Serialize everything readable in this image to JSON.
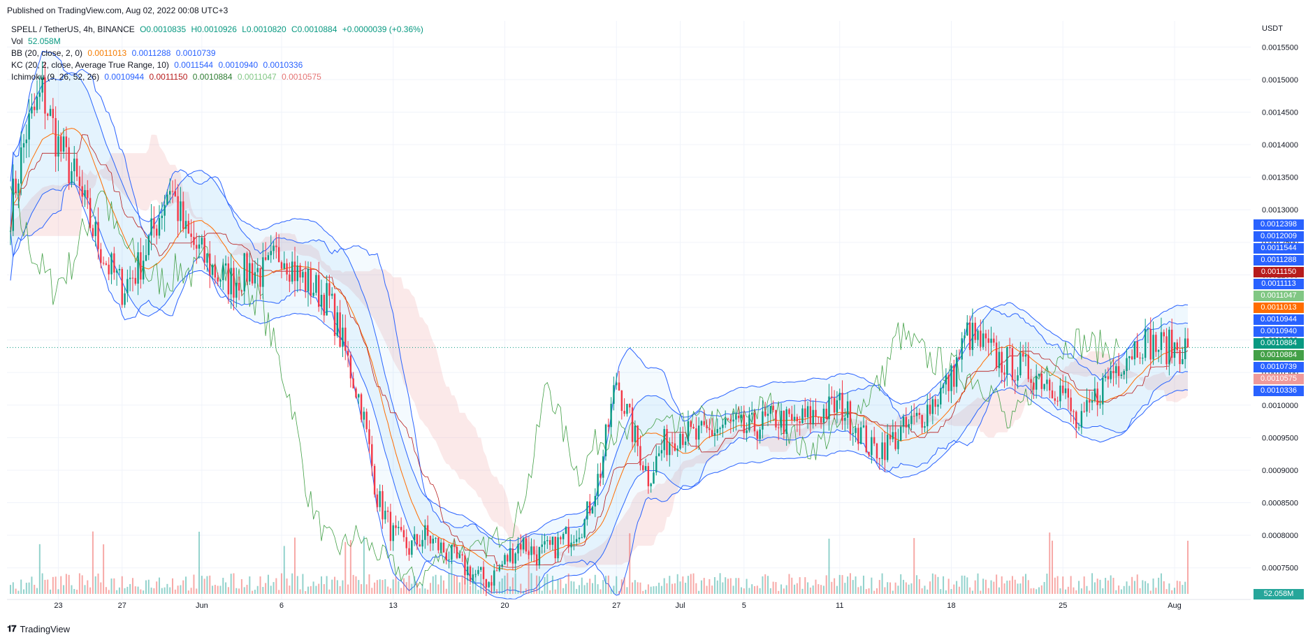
{
  "header": {
    "published": "Published on TradingView.com, Aug 02, 2022 00:08 UTC+3"
  },
  "legend": {
    "symbol": "SPELL / TetherUS, 4h, BINANCE",
    "ohlc": [
      "O0.0010835",
      "H0.0010926",
      "L0.0010820",
      "C0.0010884",
      "+0.0000039 (+0.36%)"
    ],
    "vol_label": "Vol",
    "vol_value": "52.058M",
    "bb_label": "BB (20, close, 2, 0)",
    "bb_values": [
      "0.0011013",
      "0.0011288",
      "0.0010739"
    ],
    "kc_label": "KC (20, 2, close, Average True Range, 10)",
    "kc_values": [
      "0.0011544",
      "0.0010940",
      "0.0010336"
    ],
    "ichi_label": "Ichimoku (9, 26, 52, 26)",
    "ichi_values": [
      "0.0010944",
      "0.0011150",
      "0.0010884",
      "0.0011047",
      "0.0010575"
    ]
  },
  "footer": {
    "brand": "TradingView"
  },
  "colors": {
    "up": "#089981",
    "down": "#f23645",
    "bb": "#ff6d00",
    "kc": "#2962ff",
    "ichi_lead_up": "#a5d6a7",
    "ichi_lead_down": "#ef9a9a",
    "grid": "#f0f3fa"
  },
  "price_labels": [
    {
      "text": "0.0012398",
      "value": 0.0012398,
      "color": "#2962ff"
    },
    {
      "text": "0.0012009",
      "value": 0.0012009,
      "color": "#2962ff"
    },
    {
      "text": "0.0011544",
      "value": 0.0011544,
      "color": "#2962ff"
    },
    {
      "text": "0.0011288",
      "value": 0.0011288,
      "color": "#2962ff"
    },
    {
      "text": "0.0011150",
      "value": 0.001115,
      "color": "#b71c1c"
    },
    {
      "text": "0.0011113",
      "value": 0.0011113,
      "color": "#2962ff"
    },
    {
      "text": "0.0011047",
      "value": 0.0011047,
      "color": "#81c784"
    },
    {
      "text": "0.0011013",
      "value": 0.0011013,
      "color": "#ff6d00"
    },
    {
      "text": "0.0010944",
      "value": 0.0010944,
      "color": "#2962ff"
    },
    {
      "text": "0.0010940",
      "value": 0.001094,
      "color": "#2962ff"
    },
    {
      "text": "0.0010884",
      "value": 0.0010884,
      "color": "#089981"
    },
    {
      "text": "0.0010884",
      "value": 0.0010884,
      "color": "#43a047"
    },
    {
      "text": "0.0010739",
      "value": 0.0010739,
      "color": "#2962ff"
    },
    {
      "text": "0.0010575",
      "value": 0.0010575,
      "color": "#ef9a9a"
    },
    {
      "text": "0.0010336",
      "value": 0.0010336,
      "color": "#2962ff"
    }
  ],
  "volume_label": {
    "text": "52.058M",
    "color": "#26a69a"
  },
  "chart_data": {
    "type": "candlestick",
    "title": "SPELL / TetherUS, 4h, BINANCE",
    "y_unit": "USDT",
    "ylim": [
      0.00071,
      0.00159
    ],
    "y_ticks": [
      "0.0015500",
      "0.0015000",
      "0.0014500",
      "0.0014000",
      "0.0013500",
      "0.0013000",
      "0.0012500",
      "0.0012000",
      "0.0011500",
      "0.0011000",
      "0.0010500",
      "0.0010000",
      "0.0009500",
      "0.0009000",
      "0.0008500",
      "0.0008000",
      "0.0007500"
    ],
    "x_ticks": [
      "23",
      "27",
      "Jun",
      "6",
      "13",
      "20",
      "27",
      "Jul",
      "5",
      "11",
      "18",
      "25",
      "Aug"
    ],
    "last_close": 0.0010884,
    "daily_path": [
      [
        "May 20",
        0.0013
      ],
      [
        "May 21",
        0.00142
      ],
      [
        "May 22",
        0.00148
      ],
      [
        "May 23",
        0.0014
      ],
      [
        "May 24",
        0.00135
      ],
      [
        "May 25",
        0.00128
      ],
      [
        "May 26",
        0.00122
      ],
      [
        "May 27",
        0.00118
      ],
      [
        "May 28",
        0.00121
      ],
      [
        "May 29",
        0.00127
      ],
      [
        "May 30",
        0.00134
      ],
      [
        "May 31",
        0.00126
      ],
      [
        "Jun 1",
        0.00123
      ],
      [
        "Jun 2",
        0.0012
      ],
      [
        "Jun 3",
        0.00119
      ],
      [
        "Jun 4",
        0.00121
      ],
      [
        "Jun 5",
        0.0012
      ],
      [
        "Jun 6",
        0.00124
      ],
      [
        "Jun 7",
        0.0012
      ],
      [
        "Jun 8",
        0.00118
      ],
      [
        "Jun 9",
        0.00116
      ],
      [
        "Jun 10",
        0.00108
      ],
      [
        "Jun 11",
        0.001
      ],
      [
        "Jun 12",
        0.00086
      ],
      [
        "Jun 13",
        0.0008
      ],
      [
        "Jun 14",
        0.00078
      ],
      [
        "Jun 15",
        0.0008
      ],
      [
        "Jun 16",
        0.00078
      ],
      [
        "Jun 17",
        0.00076
      ],
      [
        "Jun 18",
        0.00074
      ],
      [
        "Jun 19",
        0.00073
      ],
      [
        "Jun 20",
        0.00076
      ],
      [
        "Jun 21",
        0.00079
      ],
      [
        "Jun 22",
        0.00077
      ],
      [
        "Jun 23",
        0.00078
      ],
      [
        "Jun 24",
        0.0008
      ],
      [
        "Jun 25",
        0.00082
      ],
      [
        "Jun 26",
        0.0009
      ],
      [
        "Jun 27",
        0.00104
      ],
      [
        "Jun 28",
        0.00096
      ],
      [
        "Jun 29",
        0.00089
      ],
      [
        "Jun 30",
        0.00094
      ],
      [
        "Jul 1",
        0.00096
      ],
      [
        "Jul 2",
        0.00095
      ],
      [
        "Jul 3",
        0.00096
      ],
      [
        "Jul 4",
        0.00097
      ],
      [
        "Jul 5",
        0.00096
      ],
      [
        "Jul 6",
        0.00097
      ],
      [
        "Jul 7",
        0.00098
      ],
      [
        "Jul 8",
        0.00097
      ],
      [
        "Jul 9",
        0.00098
      ],
      [
        "Jul 10",
        0.00099
      ],
      [
        "Jul 11",
        0.001
      ],
      [
        "Jul 12",
        0.00097
      ],
      [
        "Jul 13",
        0.00093
      ],
      [
        "Jul 14",
        0.00094
      ],
      [
        "Jul 15",
        0.00096
      ],
      [
        "Jul 16",
        0.00098
      ],
      [
        "Jul 17",
        0.00101
      ],
      [
        "Jul 18",
        0.00104
      ],
      [
        "Jul 19",
        0.00111
      ],
      [
        "Jul 20",
        0.00109
      ],
      [
        "Jul 21",
        0.00107
      ],
      [
        "Jul 22",
        0.00106
      ],
      [
        "Jul 23",
        0.00105
      ],
      [
        "Jul 24",
        0.00104
      ],
      [
        "Jul 25",
        0.00102
      ],
      [
        "Jul 26",
        0.00096
      ],
      [
        "Jul 27",
        0.00101
      ],
      [
        "Jul 28",
        0.00105
      ],
      [
        "Jul 29",
        0.00108
      ],
      [
        "Jul 30",
        0.0011
      ],
      [
        "Jul 31",
        0.00109
      ],
      [
        "Aug 1",
        0.0010884
      ]
    ]
  }
}
